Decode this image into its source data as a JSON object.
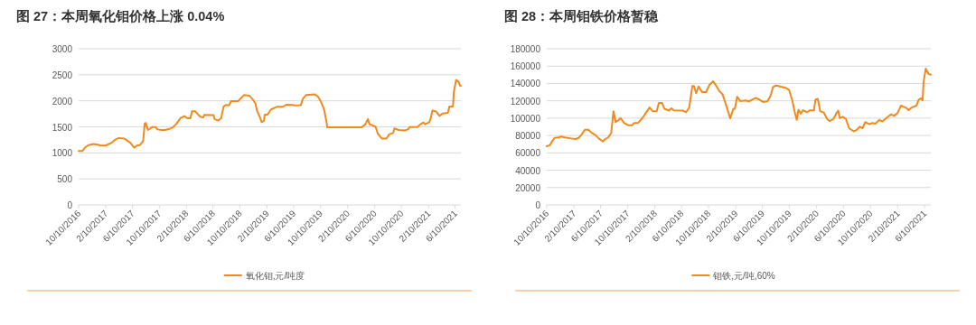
{
  "chart_data": [
    {
      "type": "line",
      "title": "图 27：本周氧化钼价格上涨 0.04%",
      "x": [
        "2016-10-10",
        "2016-10-27",
        "2016-11-10",
        "2016-11-25",
        "2016-12-15",
        "2017-01-10",
        "2017-01-15",
        "2017-02-10",
        "2017-03-10",
        "2017-03-27",
        "2017-04-10",
        "2017-05-05",
        "2017-05-20",
        "2017-06-03",
        "2017-06-18",
        "2017-07-01",
        "2017-07-15",
        "2017-07-29",
        "2017-08-05",
        "2017-08-10",
        "2017-08-20",
        "2017-09-10",
        "2017-09-25",
        "2017-10-02",
        "2017-10-20",
        "2017-11-05",
        "2017-11-25",
        "2017-12-10",
        "2017-12-25",
        "2018-01-15",
        "2018-02-01",
        "2018-02-14",
        "2018-02-28",
        "2018-03-07",
        "2018-03-21",
        "2018-04-03",
        "2018-04-13",
        "2018-04-27",
        "2018-05-02",
        "2018-06-13",
        "2018-06-17",
        "2018-07-03",
        "2018-07-17",
        "2018-07-28",
        "2018-08-07",
        "2018-08-21",
        "2018-08-31",
        "2018-10-02",
        "2018-10-12",
        "2018-10-30",
        "2018-11-21",
        "2018-12-05",
        "2018-12-19",
        "2018-12-26",
        "2019-01-09",
        "2019-01-16",
        "2019-01-27",
        "2019-01-30",
        "2019-02-13",
        "2019-02-27",
        "2019-03-13",
        "2019-03-27",
        "2019-04-24",
        "2019-05-08",
        "2019-06-07",
        "2019-06-14",
        "2019-07-12",
        "2019-07-22",
        "2019-08-05",
        "2019-09-14",
        "2019-09-28",
        "2019-10-12",
        "2019-10-26",
        "2019-11-06",
        "2019-11-09",
        "2020-04-13",
        "2020-04-30",
        "2020-05-11",
        "2020-05-18",
        "2020-06-01",
        "2020-06-15",
        "2020-06-25",
        "2020-07-13",
        "2020-08-03",
        "2020-08-15",
        "2020-09-03",
        "2020-09-08",
        "2020-09-28",
        "2020-10-26",
        "2020-11-09",
        "2020-11-16",
        "2020-12-21",
        "2021-01-04",
        "2021-01-18",
        "2021-01-25",
        "2021-02-13",
        "2021-02-20",
        "2021-02-27",
        "2021-03-17",
        "2021-03-31",
        "2021-04-14",
        "2021-05-08",
        "2021-05-15",
        "2021-05-31",
        "2021-06-04",
        "2021-06-14",
        "2021-06-25",
        "2021-07-02",
        "2021-07-06"
      ],
      "series": [
        {
          "name": "氧化钼,元/吨度",
          "color": "#f08a1d",
          "values": [
            1035,
            1035,
            1110,
            1150,
            1170,
            1155,
            1140,
            1140,
            1200,
            1260,
            1285,
            1275,
            1230,
            1185,
            1100,
            1140,
            1150,
            1230,
            1560,
            1575,
            1440,
            1500,
            1490,
            1450,
            1440,
            1440,
            1460,
            1490,
            1550,
            1670,
            1705,
            1665,
            1665,
            1800,
            1800,
            1740,
            1695,
            1680,
            1730,
            1725,
            1650,
            1620,
            1665,
            1890,
            1920,
            1910,
            1995,
            1995,
            2040,
            2110,
            2100,
            2040,
            1950,
            1815,
            1680,
            1590,
            1620,
            1730,
            1740,
            1830,
            1860,
            1885,
            1890,
            1925,
            1920,
            1910,
            1915,
            2040,
            2110,
            2125,
            2080,
            1980,
            1830,
            1590,
            1490,
            1490,
            1550,
            1650,
            1550,
            1530,
            1500,
            1370,
            1275,
            1275,
            1355,
            1385,
            1470,
            1440,
            1430,
            1455,
            1495,
            1495,
            1550,
            1585,
            1550,
            1590,
            1670,
            1815,
            1790,
            1710,
            1755,
            1770,
            1890,
            1890,
            2160,
            2400,
            2370,
            2290,
            2290
          ]
        }
      ],
      "xlim": [
        "2016-10-10",
        "2021-07-06"
      ],
      "xticks": [
        {
          "value": "2016-10-10",
          "label": "10/10/2016"
        },
        {
          "value": "2017-02-10",
          "label": "2/10/2017"
        },
        {
          "value": "2017-06-10",
          "label": "6/10/2017"
        },
        {
          "value": "2017-10-10",
          "label": "10/10/2017"
        },
        {
          "value": "2018-02-10",
          "label": "2/10/2018"
        },
        {
          "value": "2018-06-10",
          "label": "6/10/2018"
        },
        {
          "value": "2018-10-10",
          "label": "10/10/2018"
        },
        {
          "value": "2019-02-10",
          "label": "2/10/2019"
        },
        {
          "value": "2019-06-10",
          "label": "6/10/2019"
        },
        {
          "value": "2019-10-10",
          "label": "10/10/2019"
        },
        {
          "value": "2020-02-10",
          "label": "2/10/2020"
        },
        {
          "value": "2020-06-10",
          "label": "6/10/2020"
        },
        {
          "value": "2020-10-10",
          "label": "10/10/2020"
        },
        {
          "value": "2021-02-10",
          "label": "2/10/2021"
        },
        {
          "value": "2021-06-10",
          "label": "6/10/2021"
        }
      ],
      "ylim": [
        0,
        3000
      ],
      "yticks": [
        0,
        500,
        1000,
        1500,
        2000,
        2500,
        3000
      ],
      "grid": "y",
      "legend": "bottom"
    },
    {
      "type": "line",
      "title": "图 28：本周钼铁价格暂稳",
      "x": [
        "2016-10-10",
        "2016-10-24",
        "2016-11-05",
        "2016-11-15",
        "2016-12-03",
        "2016-12-13",
        "2016-12-31",
        "2017-01-28",
        "2017-02-17",
        "2017-03-03",
        "2017-03-17",
        "2017-03-31",
        "2017-04-16",
        "2017-04-28",
        "2017-05-19",
        "2017-06-02",
        "2017-06-20",
        "2017-06-30",
        "2017-07-14",
        "2017-07-28",
        "2017-08-07",
        "2017-08-17",
        "2017-08-28",
        "2017-09-08",
        "2017-09-25",
        "2017-10-12",
        "2017-10-30",
        "2017-11-09",
        "2017-11-27",
        "2017-12-18",
        "2018-01-01",
        "2018-01-17",
        "2018-01-31",
        "2018-02-18",
        "2018-02-28",
        "2018-03-14",
        "2018-03-25",
        "2018-04-15",
        "2018-04-25",
        "2018-05-06",
        "2018-06-17",
        "2018-07-01",
        "2018-07-15",
        "2018-07-29",
        "2018-08-05",
        "2018-08-15",
        "2018-08-26",
        "2018-09-11",
        "2018-09-29",
        "2018-10-14",
        "2018-10-31",
        "2018-11-14",
        "2018-11-28",
        "2018-12-12",
        "2018-12-26",
        "2019-01-16",
        "2019-01-30",
        "2019-02-06",
        "2019-02-16",
        "2019-03-02",
        "2019-03-27",
        "2019-04-10",
        "2019-05-01",
        "2019-05-11",
        "2019-05-29",
        "2019-06-12",
        "2019-07-03",
        "2019-07-17",
        "2019-07-28",
        "2019-08-11",
        "2019-09-25",
        "2019-10-09",
        "2019-10-23",
        "2019-11-02",
        "2019-11-12",
        "2019-11-20",
        "2019-11-30",
        "2019-12-10",
        "2019-12-28",
        "2020-01-11",
        "2020-01-29",
        "2020-02-04",
        "2020-02-15",
        "2020-02-26",
        "2020-03-14",
        "2020-03-28",
        "2020-04-09",
        "2020-04-26",
        "2020-05-10",
        "2020-05-17",
        "2020-05-24",
        "2020-06-07",
        "2020-06-21",
        "2020-07-05",
        "2020-07-26",
        "2020-08-09",
        "2020-08-23",
        "2020-09-04",
        "2020-09-16",
        "2020-10-04",
        "2020-10-18",
        "2020-11-01",
        "2020-11-19",
        "2020-12-03",
        "2020-12-20",
        "2021-01-10",
        "2021-01-24",
        "2021-02-10",
        "2021-02-24",
        "2021-03-17",
        "2021-03-31",
        "2021-04-14",
        "2021-05-05",
        "2021-05-15",
        "2021-05-26",
        "2021-06-02",
        "2021-06-06",
        "2021-06-16",
        "2021-06-30",
        "2021-07-09"
      ],
      "series": [
        {
          "name": "钼铁,元/吨,60%",
          "color": "#f08a1d",
          "values": [
            67700,
            68800,
            74100,
            77300,
            77700,
            78800,
            77700,
            76600,
            75900,
            77300,
            81300,
            86600,
            86600,
            83700,
            80200,
            76600,
            73100,
            75900,
            77700,
            83000,
            108000,
            95500,
            97300,
            100100,
            94400,
            91900,
            91900,
            94400,
            94800,
            100900,
            106200,
            112300,
            108000,
            108000,
            117600,
            117600,
            110800,
            108700,
            111500,
            109100,
            108700,
            106900,
            112300,
            137200,
            137200,
            128700,
            136500,
            130100,
            130100,
            138300,
            142600,
            137200,
            131100,
            127600,
            116900,
            99800,
            110800,
            110800,
            124700,
            119700,
            120500,
            119400,
            122200,
            123300,
            121200,
            118700,
            119400,
            125800,
            135800,
            137600,
            134700,
            132200,
            120500,
            108000,
            98000,
            109800,
            105100,
            109100,
            106900,
            109100,
            109100,
            121200,
            122200,
            108000,
            106200,
            99100,
            96600,
            99100,
            106200,
            108700,
            100100,
            101600,
            99100,
            88400,
            84800,
            86600,
            90200,
            88400,
            95500,
            93000,
            94400,
            93700,
            98000,
            96200,
            100100,
            104400,
            102600,
            106200,
            114400,
            112300,
            109400,
            112300,
            114400,
            121200,
            123000,
            120500,
            140800,
            157200,
            150700,
            150000
          ]
        }
      ],
      "xlim": [
        "2016-10-10",
        "2021-07-09"
      ],
      "xticks": [
        {
          "value": "2016-10-10",
          "label": "10/10/2016"
        },
        {
          "value": "2017-02-10",
          "label": "2/10/2017"
        },
        {
          "value": "2017-06-10",
          "label": "6/10/2017"
        },
        {
          "value": "2017-10-10",
          "label": "10/10/2017"
        },
        {
          "value": "2018-02-10",
          "label": "2/10/2018"
        },
        {
          "value": "2018-06-10",
          "label": "6/10/2018"
        },
        {
          "value": "2018-10-10",
          "label": "10/10/2018"
        },
        {
          "value": "2019-02-10",
          "label": "2/10/2019"
        },
        {
          "value": "2019-06-10",
          "label": "6/10/2019"
        },
        {
          "value": "2019-10-10",
          "label": "10/10/2019"
        },
        {
          "value": "2020-02-10",
          "label": "2/10/2020"
        },
        {
          "value": "2020-06-10",
          "label": "6/10/2020"
        },
        {
          "value": "2020-10-10",
          "label": "10/10/2020"
        },
        {
          "value": "2021-02-10",
          "label": "2/10/2021"
        },
        {
          "value": "2021-06-10",
          "label": "6/10/2021"
        }
      ],
      "ylim": [
        0,
        180000
      ],
      "yticks": [
        0,
        20000,
        40000,
        60000,
        80000,
        100000,
        120000,
        140000,
        160000,
        180000
      ],
      "grid": "y",
      "legend": "bottom"
    }
  ]
}
